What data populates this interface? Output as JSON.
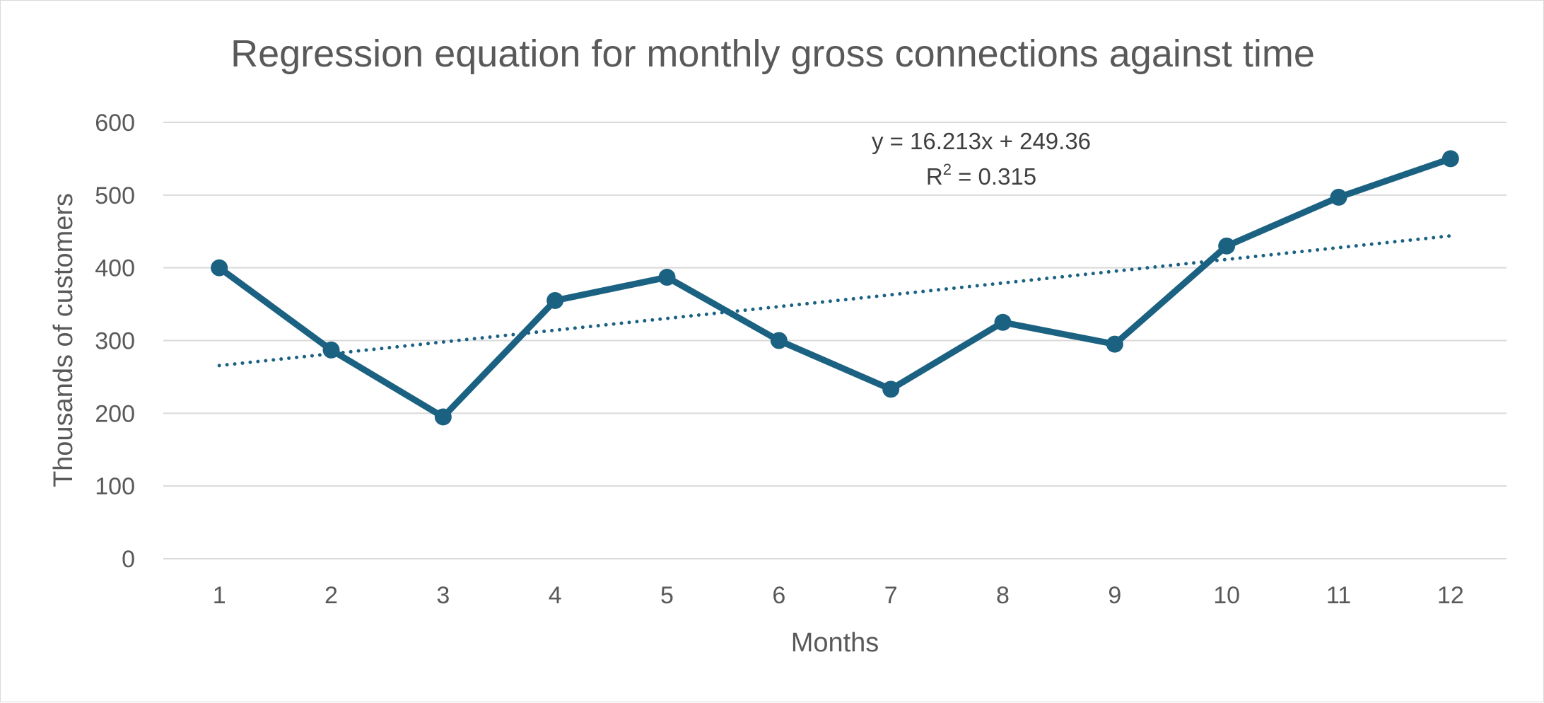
{
  "chart_data": {
    "type": "line",
    "title": "Regression equation for monthly gross connections against time",
    "xlabel": "Months",
    "ylabel": "Thousands of customers",
    "x": [
      1,
      2,
      3,
      4,
      5,
      6,
      7,
      8,
      9,
      10,
      11,
      12
    ],
    "categories": [
      "1",
      "2",
      "3",
      "4",
      "5",
      "6",
      "7",
      "8",
      "9",
      "10",
      "11",
      "12"
    ],
    "series": [
      {
        "values": [
          400,
          287,
          195,
          355,
          387,
          300,
          233,
          325,
          295,
          430,
          497,
          550
        ],
        "color": "#1b6182",
        "markers": true
      }
    ],
    "trendline": {
      "type": "linear",
      "style": "dotted",
      "color": "#1b6182",
      "slope": 16.213,
      "intercept": 249.36,
      "equation_label": "y = 16.213x + 249.36",
      "r2_prefix": "R",
      "r2_sup": "2",
      "r2_value": " = 0.315"
    },
    "ylim": [
      0,
      600
    ],
    "yticks": [
      0,
      100,
      200,
      300,
      400,
      500,
      600
    ],
    "grid": true,
    "legend": "none"
  }
}
